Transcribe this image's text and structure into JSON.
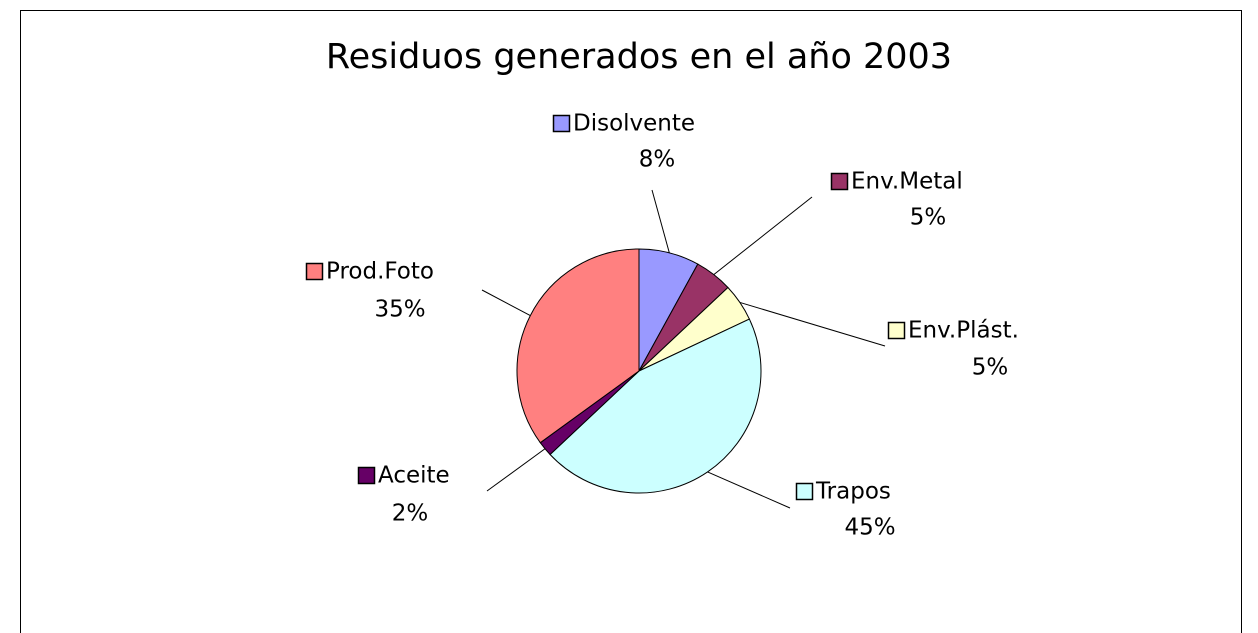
{
  "chart_data": {
    "type": "pie",
    "title": "Residuos generados en el año 2003",
    "categories": [
      "Disolvente",
      "Env.Metal",
      "Env.Plást.",
      "Trapos",
      "Aceite",
      "Prod.Foto"
    ],
    "values": [
      8,
      5,
      5,
      45,
      2,
      35
    ],
    "value_labels": [
      "8%",
      "5%",
      "5%",
      "45%",
      "2%",
      "35%"
    ],
    "colors": [
      "#9999ff",
      "#993366",
      "#ffffcc",
      "#ccffff",
      "#660066",
      "#ff8080"
    ]
  }
}
